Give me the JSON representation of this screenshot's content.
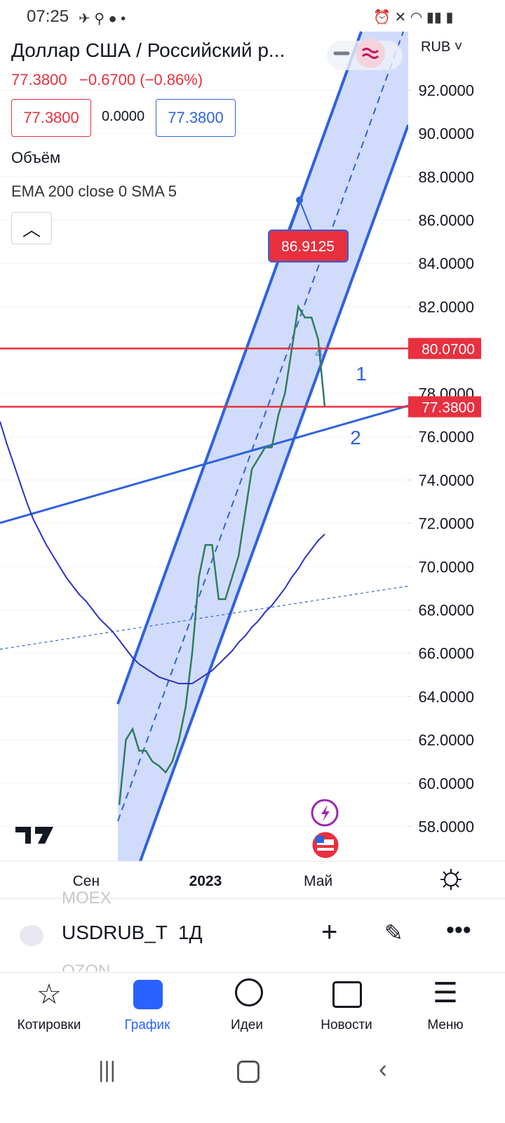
{
  "status_bar": {
    "time": "07:25"
  },
  "header": {
    "title": "Доллар США / Российский р...",
    "currency": "RUB",
    "last": "77.3800",
    "change": "−0.6700 (−0.86%)",
    "bid": "77.3800",
    "spread": "0.0000",
    "ask": "77.3800",
    "volume_label": "Объём"
  },
  "chart_data": {
    "type": "line",
    "categories": [
      null,
      null,
      null,
      null,
      null,
      null,
      null,
      null,
      null,
      null,
      null,
      null,
      null,
      "Сен",
      null,
      null,
      null,
      null,
      null,
      null,
      null,
      null,
      null,
      null,
      null,
      null,
      null,
      null,
      null,
      null,
      null,
      "2023",
      null,
      null,
      null,
      null,
      null,
      null,
      null,
      null,
      null,
      null,
      null,
      null,
      null,
      null,
      null,
      null,
      "Май",
      null
    ],
    "series": [
      {
        "color": "#2e7d5b",
        "values": [
          null,
          null,
          null,
          null,
          null,
          null,
          null,
          null,
          null,
          null,
          null,
          null,
          null,
          null,
          null,
          null,
          null,
          null,
          59,
          62,
          62.5,
          61.5,
          61.5,
          61,
          60.8,
          60.5,
          61,
          62,
          63.5,
          66,
          69.5,
          71,
          71,
          68.5,
          68.5,
          69.5,
          70.5,
          72.5,
          74.5,
          75,
          75.5,
          75.5,
          77,
          78,
          80,
          82,
          81.5,
          81.5,
          80.5,
          77.38
        ]
      },
      {
        "name": "EMA 200 close 0 SMA 5",
        "color": "#2f2fc8",
        "values": [
          76.7,
          75.7,
          74.8,
          73.9,
          73.0,
          72.2,
          71.6,
          71.0,
          70.5,
          70.0,
          69.5,
          69.1,
          68.7,
          68.4,
          68.0,
          67.6,
          67.3,
          67.0,
          66.6,
          66.2,
          65.8,
          65.5,
          65.3,
          65.1,
          64.9,
          64.8,
          64.7,
          64.6,
          64.6,
          64.6,
          64.8,
          65.0,
          65.2,
          65.5,
          65.8,
          66.1,
          66.5,
          66.8,
          67.2,
          67.5,
          67.9,
          68.2,
          68.6,
          69.0,
          69.5,
          69.9,
          70.4,
          70.8,
          71.2,
          71.5
        ]
      }
    ],
    "ylim": [
      56.4,
      94.7
    ],
    "yticks": [
      {
        "value": 58,
        "label": "58.0000"
      },
      {
        "value": 60,
        "label": "60.0000"
      },
      {
        "value": 62,
        "label": "62.0000"
      },
      {
        "value": 64,
        "label": "64.0000"
      },
      {
        "value": 66,
        "label": "66.0000"
      },
      {
        "value": 68,
        "label": "68.0000"
      },
      {
        "value": 70,
        "label": "70.0000"
      },
      {
        "value": 72,
        "label": "72.0000"
      },
      {
        "value": 74,
        "label": "74.0000"
      },
      {
        "value": 76,
        "label": "76.0000"
      },
      {
        "value": 78,
        "label": "78.0000"
      },
      {
        "value": 80,
        "label": "80.0000"
      },
      {
        "value": 82,
        "label": "82.0000"
      },
      {
        "value": 84,
        "label": "84.0000"
      },
      {
        "value": 86,
        "label": "86.0000"
      },
      {
        "value": 88,
        "label": "88.0000"
      },
      {
        "value": 90,
        "label": "90.0000"
      },
      {
        "value": 92,
        "label": "92.0000"
      }
    ],
    "grid": true,
    "price_lines": [
      {
        "value": 80.07,
        "label": "80.0700",
        "color": "#e8303f"
      },
      {
        "value": 77.38,
        "label": "77.3800",
        "color": "#e8303f"
      }
    ],
    "annotations": {
      "measure": "86.9125",
      "mark1": "1",
      "mark2": "2",
      "mark4": "4"
    }
  },
  "toolbar": {
    "list_above": "MOEX",
    "symbol": "USDRUB_T(",
    "interval": "1Д",
    "list_below": "OZON"
  },
  "nav": [
    "Котировки",
    "График",
    "Идеи",
    "Новости",
    "Меню"
  ]
}
